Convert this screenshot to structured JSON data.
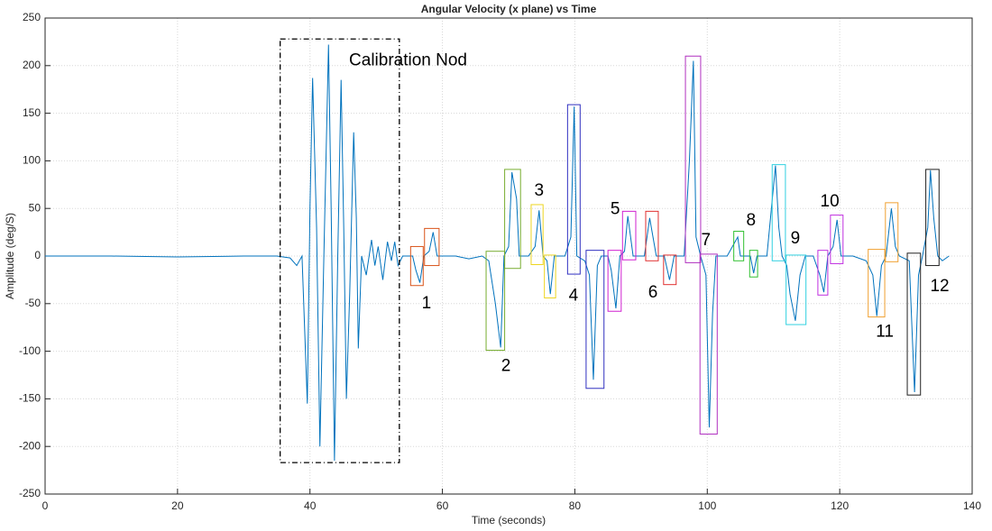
{
  "chart_data": {
    "type": "line",
    "title": "Angular Velocity (x plane) vs Time",
    "x_label": "Time (seconds)",
    "y_label": "Amplitude (deg/S)",
    "color": "#0072bd",
    "grid": true,
    "xlim": [
      0,
      140
    ],
    "xticks": [
      0,
      20,
      40,
      60,
      80,
      100,
      120,
      140
    ],
    "ylim": [
      -250,
      250
    ],
    "yticks": [
      -250,
      -200,
      -150,
      -100,
      -50,
      0,
      50,
      100,
      150,
      200,
      250
    ],
    "x": [
      0,
      10,
      20,
      30,
      35,
      37,
      38,
      38.8,
      39.6,
      40,
      40.4,
      41,
      41.5,
      42.1,
      42.8,
      43.2,
      43.7,
      44.2,
      44.7,
      45.1,
      45.5,
      46,
      46.6,
      47,
      47.3,
      47.8,
      48.5,
      49.3,
      49.8,
      50.3,
      51,
      51.7,
      52.3,
      52.8,
      53.3,
      54,
      55.5,
      56,
      56.6,
      57.2,
      58,
      58.6,
      59.2,
      62,
      64,
      66,
      67,
      68,
      68.8,
      69.3,
      70,
      70.5,
      71.2,
      71.6,
      73,
      74,
      74.6,
      75.2,
      75.8,
      76.3,
      76.9,
      78.5,
      79.4,
      79.9,
      80.3,
      81.5,
      82.2,
      82.8,
      83.4,
      84,
      85,
      85.5,
      86.2,
      86.8,
      87.5,
      88,
      88.8,
      90.5,
      91.3,
      91.8,
      92.3,
      93.5,
      94.3,
      95,
      96.5,
      97.3,
      97.9,
      98.3,
      99,
      99.8,
      100.3,
      100.8,
      101.3,
      103,
      104.6,
      105,
      106.5,
      107,
      107.5,
      109,
      110.3,
      110.8,
      111.3,
      112,
      112.5,
      113.3,
      114,
      114.8,
      116,
      117,
      117.6,
      118.2,
      119,
      119.6,
      120.2,
      122,
      124,
      125,
      125.6,
      126.3,
      127,
      127.8,
      128.4,
      129,
      130.5,
      131.3,
      131.9,
      132.5,
      133.3,
      133.7,
      134.2,
      134.8,
      135.5,
      136.5
    ],
    "values": [
      0,
      0,
      -1,
      0,
      0,
      -2,
      -10,
      0,
      -155,
      50,
      187,
      30,
      -200,
      0,
      222,
      50,
      -215,
      0,
      185,
      30,
      -150,
      -40,
      130,
      40,
      -97,
      0,
      -20,
      17,
      -10,
      10,
      -25,
      15,
      -5,
      15,
      -10,
      0,
      0,
      -15,
      -28,
      0,
      5,
      25,
      0,
      0,
      -3,
      0,
      -5,
      -50,
      -96,
      0,
      10,
      88,
      60,
      0,
      0,
      10,
      48,
      0,
      -5,
      -40,
      0,
      0,
      20,
      157,
      0,
      -5,
      -20,
      -130,
      -10,
      0,
      0,
      -15,
      -55,
      0,
      5,
      42,
      0,
      0,
      40,
      20,
      0,
      0,
      -25,
      0,
      0,
      100,
      205,
      20,
      0,
      -20,
      -180,
      -60,
      0,
      0,
      20,
      0,
      0,
      -18,
      0,
      0,
      95,
      30,
      0,
      -10,
      -40,
      -68,
      -20,
      0,
      0,
      -20,
      -38,
      0,
      10,
      38,
      0,
      0,
      -5,
      -20,
      -63,
      -10,
      0,
      50,
      10,
      0,
      -5,
      -143,
      -20,
      0,
      30,
      90,
      40,
      0,
      -5,
      0
    ],
    "annotations": [
      {
        "label": "Calibration Nod",
        "color": "#000000",
        "linestyle": "dashdot",
        "label_at": [
          45.9,
          205
        ],
        "rects": [
          [
            35.5,
            53.5,
            -217,
            228
          ]
        ]
      },
      {
        "label": "1",
        "color": "#d95319",
        "label_at": [
          57.6,
          -50
        ],
        "rects": [
          [
            55.2,
            57.1,
            -31,
            10
          ],
          [
            57.3,
            59.5,
            -10,
            29
          ]
        ]
      },
      {
        "label": "2",
        "color": "#77ac30",
        "label_at": [
          69.6,
          -116
        ],
        "rects": [
          [
            66.6,
            69.4,
            -99,
            5
          ],
          [
            69.4,
            71.8,
            -13,
            91
          ]
        ]
      },
      {
        "label": "3",
        "color": "#edd520",
        "label_at": [
          74.6,
          68
        ],
        "rects": [
          [
            73.4,
            75.2,
            -9,
            54
          ],
          [
            75.4,
            77.1,
            -44,
            1
          ]
        ]
      },
      {
        "label": "4",
        "color": "#3030c0",
        "label_at": [
          79.8,
          -42
        ],
        "rects": [
          [
            78.9,
            80.8,
            -19,
            159
          ],
          [
            81.7,
            84.4,
            -139,
            6
          ]
        ]
      },
      {
        "label": "5",
        "color": "#d020d0",
        "label_at": [
          86.1,
          49
        ],
        "rects": [
          [
            85.0,
            87.0,
            -58,
            6
          ],
          [
            87.2,
            89.2,
            -4,
            47
          ]
        ]
      },
      {
        "label": "6",
        "color": "#e03030",
        "label_at": [
          91.8,
          -39
        ],
        "rects": [
          [
            90.7,
            92.6,
            -5,
            47
          ],
          [
            93.4,
            95.3,
            -30,
            1
          ]
        ]
      },
      {
        "label": "7",
        "color": "#b030c0",
        "label_at": [
          99.8,
          16
        ],
        "rects": [
          [
            96.7,
            99.0,
            -7,
            210
          ],
          [
            98.9,
            101.5,
            -187,
            2
          ]
        ]
      },
      {
        "label": "8",
        "color": "#30c030",
        "label_at": [
          106.6,
          37
        ],
        "rects": [
          [
            104.0,
            105.5,
            -5,
            26
          ],
          [
            106.4,
            107.6,
            -22,
            6
          ]
        ]
      },
      {
        "label": "9",
        "color": "#30d0e0",
        "label_at": [
          113.3,
          18
        ],
        "rects": [
          [
            109.8,
            111.8,
            -5,
            96
          ],
          [
            111.9,
            114.9,
            -72,
            1
          ]
        ]
      },
      {
        "label": "10",
        "color": "#c030e0",
        "label_at": [
          118.5,
          57
        ],
        "rects": [
          [
            116.7,
            118.2,
            -41,
            6
          ],
          [
            118.6,
            120.5,
            -8,
            43
          ]
        ]
      },
      {
        "label": "11",
        "color": "#f0a030",
        "label_at": [
          126.8,
          -80
        ],
        "rects": [
          [
            124.3,
            126.8,
            -64,
            7
          ],
          [
            126.9,
            128.8,
            -6,
            56
          ]
        ]
      },
      {
        "label": "12",
        "color": "#202020",
        "label_at": [
          135.1,
          -32
        ],
        "rects": [
          [
            130.2,
            132.2,
            -146,
            3
          ],
          [
            133.0,
            135.0,
            -10,
            91
          ]
        ]
      }
    ]
  }
}
